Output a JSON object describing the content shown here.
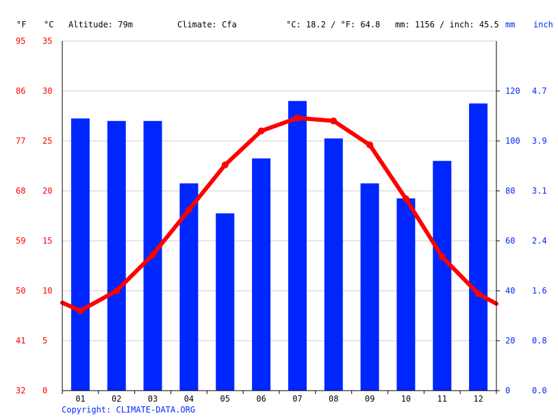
{
  "header": {
    "fahrenheit_unit": "°F",
    "celsius_unit": "°C",
    "altitude": "Altitude: 79m",
    "climate": "Climate: Cfa",
    "avg_temp": "°C: 18.2 / °F: 64.8",
    "precip_total": "mm: 1156 / inch: 45.5",
    "mm_unit": "mm",
    "inch_unit": "inch"
  },
  "copyright": "Copyright: CLIMATE-DATA.ORG",
  "colors": {
    "temperature": "#ff0000",
    "precipitation": "#0026ff",
    "grid": "#cccccc",
    "axis": "#000000"
  },
  "chart_data": {
    "type": "bar",
    "categories": [
      "01",
      "02",
      "03",
      "04",
      "05",
      "06",
      "07",
      "08",
      "09",
      "10",
      "11",
      "12"
    ],
    "series": [
      {
        "type": "bar",
        "axis": "right",
        "values": [
          109,
          108,
          108,
          83,
          71,
          93,
          116,
          101,
          83,
          77,
          92,
          115
        ]
      },
      {
        "type": "line",
        "axis": "left",
        "values": [
          8.0,
          10.0,
          13.6,
          18.1,
          22.6,
          26.0,
          27.3,
          27.0,
          24.6,
          19.2,
          13.4,
          9.7
        ]
      }
    ],
    "line_edge_values": [
      8.8,
      8.7
    ],
    "left_axis": {
      "ylim": [
        0,
        35
      ],
      "celsius_ticks": [
        "0",
        "5",
        "10",
        "15",
        "20",
        "25",
        "30",
        "35"
      ],
      "fahrenheit_ticks": [
        "32",
        "41",
        "50",
        "59",
        "68",
        "77",
        "86",
        "95"
      ]
    },
    "right_axis": {
      "ylim": [
        0,
        140
      ],
      "mm_ticks": [
        "0",
        "20",
        "40",
        "60",
        "80",
        "100",
        "120"
      ],
      "inch_ticks": [
        "0.0",
        "0.8",
        "1.6",
        "2.4",
        "3.1",
        "3.9",
        "4.7"
      ]
    },
    "grid": true
  }
}
